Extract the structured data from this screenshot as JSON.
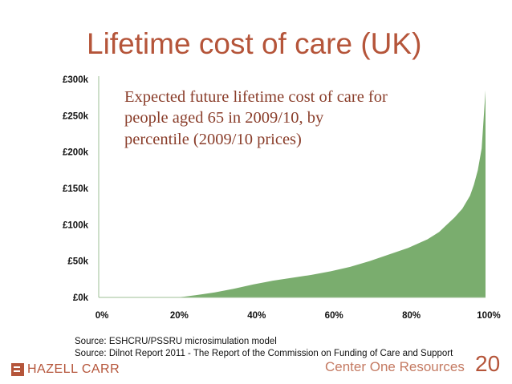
{
  "slide": {
    "title": "Lifetime cost of care (UK)",
    "page_number": "20",
    "company": "Center One Resources",
    "logo_text": "HAZELL CARR",
    "sources": [
      "Source: ESHCRU/PSSRU microsimulation model",
      "Source: Dilnot Report 2011 - The Report of the Commission on Funding of Care and Support"
    ]
  },
  "chart_data": {
    "type": "area",
    "subtitle_lines": [
      "Expected future lifetime cost of care for",
      "people aged 65 in 2009/10, by",
      "percentile (2009/10 prices)"
    ],
    "x": [
      0,
      5,
      10,
      15,
      20,
      22,
      25,
      30,
      35,
      40,
      43,
      45,
      50,
      55,
      60,
      65,
      70,
      75,
      80,
      85,
      88,
      90,
      92,
      94,
      96,
      97,
      98,
      99,
      100
    ],
    "y": [
      0,
      0,
      0,
      0,
      0,
      1,
      3,
      7,
      12,
      18,
      21,
      23,
      27,
      31,
      36,
      42,
      50,
      59,
      68,
      80,
      90,
      100,
      110,
      122,
      140,
      155,
      175,
      205,
      285
    ],
    "y_unit": "£k",
    "xlim": [
      0,
      100
    ],
    "ylim": [
      0,
      300
    ],
    "x_ticks": [
      "0%",
      "20%",
      "40%",
      "60%",
      "80%",
      "100%"
    ],
    "y_ticks": [
      "£0k",
      "£50k",
      "£100k",
      "£150k",
      "£200k",
      "£250k",
      "£300k"
    ],
    "colors": {
      "fill": "#7aad6e",
      "axis": "#9dbf94"
    },
    "grid": false,
    "legend": "none"
  }
}
